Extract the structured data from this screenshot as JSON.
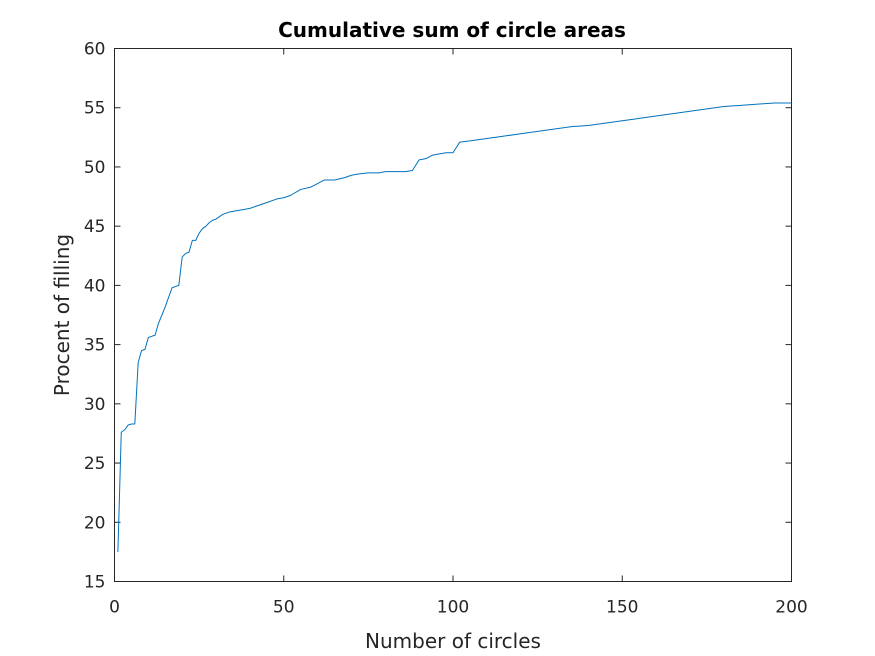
{
  "chart_data": {
    "type": "line",
    "title": "Cumulative sum of circle areas",
    "xlabel": "Number of circles",
    "ylabel": "Procent of filling",
    "xlim": [
      0,
      200
    ],
    "ylim": [
      15,
      60
    ],
    "xticks": [
      0,
      50,
      100,
      150,
      200
    ],
    "yticks": [
      15,
      20,
      25,
      30,
      35,
      40,
      45,
      50,
      55,
      60
    ],
    "grid": false,
    "color": "#0072bd",
    "series": [
      {
        "x": [
          1,
          2,
          3,
          4,
          5,
          6,
          7,
          8,
          9,
          10,
          11,
          12,
          13,
          14,
          15,
          16,
          17,
          18,
          19,
          20,
          21,
          22,
          23,
          24,
          25,
          26,
          27,
          28,
          29,
          30,
          32,
          34,
          36,
          38,
          40,
          42,
          45,
          48,
          50,
          52,
          55,
          58,
          60,
          62,
          65,
          68,
          70,
          72,
          75,
          78,
          80,
          83,
          86,
          88,
          90,
          92,
          94,
          96,
          98,
          100,
          102,
          105,
          110,
          115,
          120,
          125,
          130,
          135,
          140,
          145,
          150,
          155,
          160,
          165,
          170,
          175,
          180,
          185,
          190,
          195,
          200
        ],
        "y": [
          17.5,
          27.6,
          27.8,
          28.2,
          28.3,
          28.3,
          33.5,
          34.5,
          34.6,
          35.6,
          35.7,
          35.8,
          36.8,
          37.5,
          38.2,
          39.0,
          39.8,
          39.9,
          40.0,
          42.4,
          42.7,
          42.8,
          43.8,
          43.8,
          44.4,
          44.8,
          45.0,
          45.3,
          45.5,
          45.6,
          46.0,
          46.2,
          46.3,
          46.4,
          46.5,
          46.7,
          47.0,
          47.3,
          47.4,
          47.6,
          48.1,
          48.3,
          48.6,
          48.9,
          48.9,
          49.1,
          49.3,
          49.4,
          49.5,
          49.5,
          49.6,
          49.6,
          49.6,
          49.7,
          50.6,
          50.7,
          51.0,
          51.1,
          51.2,
          51.2,
          52.1,
          52.2,
          52.4,
          52.6,
          52.8,
          53.0,
          53.2,
          53.4,
          53.5,
          53.7,
          53.9,
          54.1,
          54.3,
          54.5,
          54.7,
          54.9,
          55.1,
          55.2,
          55.3,
          55.4,
          55.4
        ]
      }
    ]
  }
}
